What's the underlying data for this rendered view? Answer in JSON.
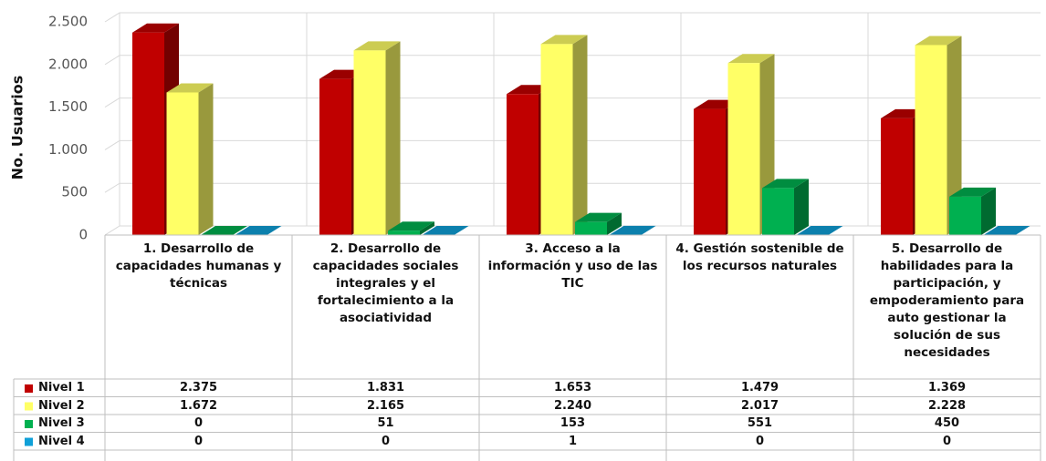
{
  "chart_data": {
    "type": "bar3d",
    "y_label": "No. Usuarios",
    "categories": [
      "1. Desarrollo de capacidades humanas y técnicas",
      "2. Desarrollo de capacidades sociales integrales y el fortalecimiento a la asociatividad",
      "3. Acceso a la información y uso de las TIC",
      "4. Gestión sostenible de los recursos naturales",
      "5. Desarrollo de habilidades para la participación, y empoderamiento para auto gestionar la solución de sus necesidades"
    ],
    "series": [
      {
        "name": "Nivel 1",
        "color": "#c00000",
        "values": [
          2375,
          1831,
          1653,
          1479,
          1369
        ],
        "value_labels": [
          "2.375",
          "1.831",
          "1.653",
          "1.479",
          "1.369"
        ]
      },
      {
        "name": "Nivel 2",
        "color": "#ffff66",
        "values": [
          1672,
          2165,
          2240,
          2017,
          2228
        ],
        "value_labels": [
          "1.672",
          "2.165",
          "2.240",
          "2.017",
          "2.228"
        ]
      },
      {
        "name": "Nivel 3",
        "color": "#00b050",
        "values": [
          0,
          51,
          153,
          551,
          450
        ]
      },
      {
        "name": "Nivel 4",
        "color": "#0fa0d8",
        "values": [
          0,
          0,
          1,
          0,
          0
        ]
      }
    ],
    "ylim": [
      0,
      2500
    ],
    "yticks": [
      0,
      500,
      {
        "value": 1000,
        "label": "1.000"
      },
      {
        "value": 1500,
        "label": "1.500"
      },
      {
        "value": 2000,
        "label": "2.000"
      },
      {
        "value": 2500,
        "label": "2.500"
      }
    ],
    "grid": true,
    "data_table": true
  }
}
